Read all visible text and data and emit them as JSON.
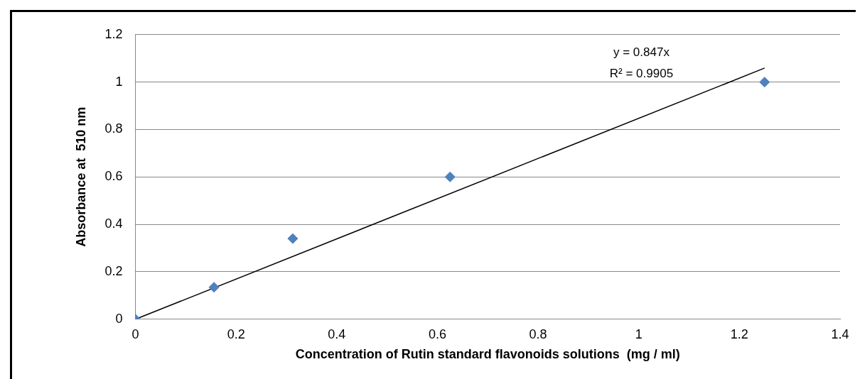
{
  "chart_data": {
    "type": "scatter",
    "xlabel": "Concentration of Rutin standard flavonoids solutions  (mg / ml)",
    "ylabel": "Absorbance at  510 nm",
    "series": [
      {
        "color": "#4f81bd",
        "marker": "diamond",
        "x": [
          0,
          0.156,
          0.3125,
          0.625,
          1.25
        ],
        "values": [
          0,
          0.135,
          0.34,
          0.6,
          1.0
        ]
      },
      {
        "type": "line",
        "color": "#000000",
        "marker": "none",
        "x": [
          0,
          1.25
        ],
        "values": [
          0,
          1.059
        ]
      }
    ],
    "annotations": [
      "y = 0.847x",
      "R² = 0.9905"
    ],
    "xlim": [
      0,
      1.4
    ],
    "xticks": [
      0,
      0.2,
      0.4,
      0.6,
      0.8,
      1,
      1.2,
      1.4
    ],
    "ylim": [
      0,
      1.2
    ],
    "yticks": [
      0,
      0.2,
      0.4,
      0.6,
      0.8,
      1,
      1.2
    ],
    "grid": "y",
    "legend": false
  }
}
